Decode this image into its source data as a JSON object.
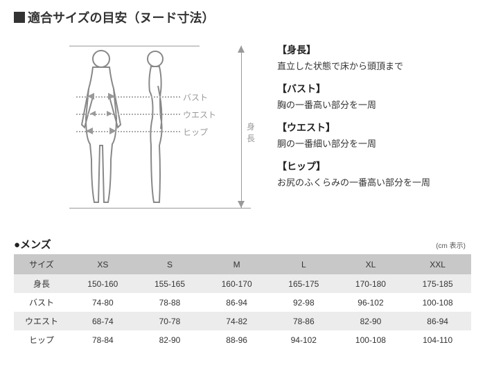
{
  "title": "適合サイズの目安（ヌード寸法）",
  "figure": {
    "labels": {
      "bust": "バスト",
      "waist": "ウエスト",
      "hip": "ヒップ",
      "height": "身長"
    }
  },
  "definitions": [
    {
      "term": "【身長】",
      "desc": "直立した状態で床から頭頂まで"
    },
    {
      "term": "【バスト】",
      "desc": "胸の一番高い部分を一周"
    },
    {
      "term": "【ウエスト】",
      "desc": "胴の一番細い部分を一周"
    },
    {
      "term": "【ヒップ】",
      "desc": "お尻のふくらみの一番高い部分を一周"
    }
  ],
  "table": {
    "title": "●メンズ",
    "unit": "(cm 表示)",
    "header_first": "サイズ",
    "sizes": [
      "XS",
      "S",
      "M",
      "L",
      "XL",
      "XXL"
    ],
    "rows": [
      {
        "label": "身長",
        "values": [
          "150-160",
          "155-165",
          "160-170",
          "165-175",
          "170-180",
          "175-185"
        ]
      },
      {
        "label": "バスト",
        "values": [
          "74-80",
          "78-88",
          "86-94",
          "92-98",
          "96-102",
          "100-108"
        ]
      },
      {
        "label": "ウエスト",
        "values": [
          "68-74",
          "70-78",
          "74-82",
          "78-86",
          "82-90",
          "86-94"
        ]
      },
      {
        "label": "ヒップ",
        "values": [
          "78-84",
          "82-90",
          "88-96",
          "94-102",
          "100-108",
          "104-110"
        ]
      }
    ]
  },
  "colors": {
    "header_bg": "#c8c8c8",
    "row_alt_bg": "#ececec",
    "text": "#333333",
    "line": "#999999"
  }
}
